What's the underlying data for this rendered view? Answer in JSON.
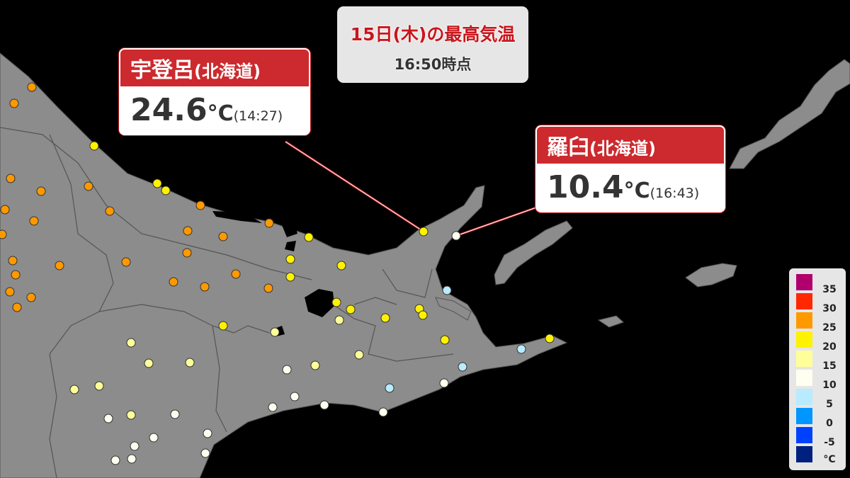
{
  "header": {
    "title": "15日(木)の最高気温",
    "as_of": "16:50時点"
  },
  "callouts": [
    {
      "place": "宇登呂",
      "region": "(北海道)",
      "value": "24.6",
      "unit": "°C",
      "time": "(14:27)",
      "band_color": "#fff200"
    },
    {
      "place": "羅臼",
      "region": "(北海道)",
      "value": "10.4",
      "unit": "°C",
      "time": "(16:43)",
      "band_color": "#fffff0"
    }
  ],
  "legend": {
    "unit": "°C",
    "swatches": [
      "#b0006e",
      "#ff2800",
      "#ff9900",
      "#fff200",
      "#ffff99",
      "#fffff0",
      "#b9ebff",
      "#0096ff",
      "#0041ff",
      "#002080"
    ],
    "labels": [
      "35",
      "30",
      "25",
      "20",
      "15",
      "10",
      "5",
      "0",
      "-5"
    ]
  },
  "colors": {
    "land": "#8c8c8c",
    "sea": "#000000",
    "accent": "#cc2a2e"
  },
  "station_bands": [
    "25",
    "25",
    "25",
    "20",
    "20",
    "20",
    "25",
    "25",
    "25",
    "25",
    "25",
    "25",
    "25",
    "25",
    "25",
    "25",
    "25",
    "25",
    "25",
    "25",
    "25",
    "25",
    "25",
    "25",
    "25",
    "25",
    "25",
    "25",
    "20",
    "20",
    "20",
    "20",
    "20",
    "20",
    "20",
    "20",
    "20",
    "20",
    "20",
    "15",
    "15",
    "15",
    "15",
    "15",
    "15",
    "15",
    "15",
    "15",
    "15",
    "10",
    "10",
    "10",
    "10",
    "10",
    "10",
    "10",
    "10",
    "10",
    "10",
    "10",
    "10",
    "5",
    "5",
    "5",
    "5",
    "20",
    "10"
  ]
}
